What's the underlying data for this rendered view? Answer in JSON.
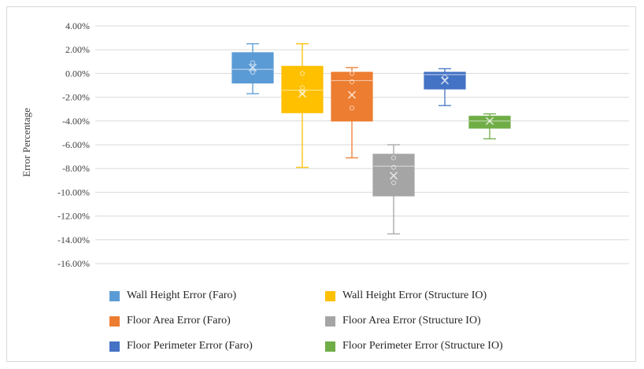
{
  "chart_data": {
    "type": "box",
    "ylabel": "Error Percentage",
    "ylim": [
      -16,
      4
    ],
    "ytick_step": 2,
    "ytick_labels": [
      "4.00%",
      "2.00%",
      "0.00%",
      "-2.00%",
      "-4.00%",
      "-6.00%",
      "-8.00%",
      "-10.00%",
      "-12.00%",
      "-14.00%",
      "-16.00%"
    ],
    "grid": true,
    "legend_position": "bottom",
    "series": [
      {
        "name": "Wall Height Error  (Faro)",
        "color": "#5b9bd5",
        "whisker_low": -1.7,
        "q1": -0.8,
        "median": 0.35,
        "q3": 1.75,
        "whisker_high": 2.5,
        "mean": 0.5,
        "points": [
          0.9,
          0.1
        ]
      },
      {
        "name": "Wall Height Error (Structure IO)",
        "color": "#ffc000",
        "whisker_low": -7.9,
        "q1": -3.3,
        "median": -1.4,
        "q3": 0.6,
        "whisker_high": 2.5,
        "mean": -1.7,
        "points": [
          0.0,
          -1.2,
          -1.6
        ]
      },
      {
        "name": "Floor Area Error (Faro)",
        "color": "#ed7d31",
        "whisker_low": -7.1,
        "q1": -4.0,
        "median": -0.6,
        "q3": 0.1,
        "whisker_high": 0.5,
        "mean": -1.8,
        "points": [
          0.0,
          -0.7,
          -2.9
        ]
      },
      {
        "name": "Floor Area Error (Structure IO)",
        "color": "#a5a5a5",
        "whisker_low": -13.5,
        "q1": -10.3,
        "median": -7.8,
        "q3": -6.8,
        "whisker_high": -6.0,
        "mean": -8.6,
        "points": [
          -7.1,
          -7.9,
          -9.2
        ]
      },
      {
        "name": "Floor Perimeter Error (Faro)",
        "color": "#4472c4",
        "whisker_low": -2.7,
        "q1": -1.3,
        "median": -0.1,
        "q3": 0.1,
        "whisker_high": 0.4,
        "mean": -0.6,
        "points": [
          -0.3
        ]
      },
      {
        "name": "Floor Perimeter Error (Structure IO)",
        "color": "#70ad47",
        "whisker_low": -5.5,
        "q1": -4.6,
        "median": -4.0,
        "q3": -3.6,
        "whisker_high": -3.4,
        "mean": -4.0,
        "points": []
      }
    ]
  }
}
